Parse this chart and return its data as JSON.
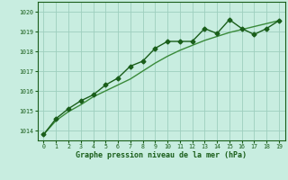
{
  "x": [
    0,
    1,
    2,
    3,
    4,
    5,
    6,
    7,
    8,
    9,
    10,
    11,
    12,
    13,
    14,
    15,
    16,
    17,
    18,
    19
  ],
  "y_measured": [
    1013.8,
    1014.6,
    1015.1,
    1015.5,
    1015.8,
    1016.3,
    1016.65,
    1017.25,
    1017.5,
    1018.15,
    1018.5,
    1018.5,
    1018.5,
    1019.15,
    1018.9,
    1019.6,
    1019.15,
    1018.85,
    1019.15,
    1019.55
  ],
  "y_trend": [
    1013.8,
    1014.5,
    1014.95,
    1015.3,
    1015.7,
    1016.0,
    1016.3,
    1016.6,
    1017.0,
    1017.4,
    1017.75,
    1018.05,
    1018.3,
    1018.55,
    1018.75,
    1018.95,
    1019.1,
    1019.25,
    1019.4,
    1019.55
  ],
  "ylim": [
    1013.5,
    1020.5
  ],
  "yticks": [
    1014,
    1015,
    1016,
    1017,
    1018,
    1019,
    1020
  ],
  "xticks": [
    0,
    1,
    2,
    3,
    4,
    5,
    6,
    7,
    8,
    9,
    10,
    11,
    12,
    13,
    14,
    15,
    16,
    17,
    18,
    19
  ],
  "line_color": "#1a5e1a",
  "trend_color": "#3a8a3a",
  "bg_color": "#c8ede0",
  "grid_color": "#9ecfbe",
  "xlabel": "Graphe pression niveau de la mer (hPa)",
  "xlabel_color": "#1a5e1a",
  "marker": "D",
  "marker_size": 2.5,
  "line_width": 1.0
}
